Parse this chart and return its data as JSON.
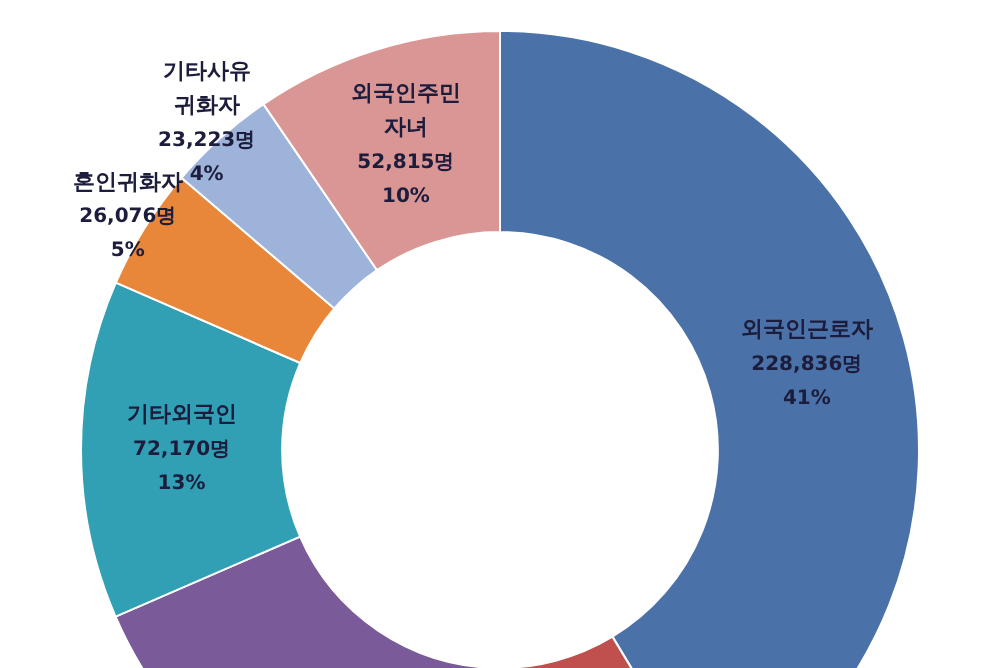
{
  "chart_data": {
    "type": "donut",
    "categories": [
      "외국인근로자",
      null,
      null,
      "기타외국인",
      "혼인귀화자",
      "기타사유 귀화자",
      "외국인주민 자녀"
    ],
    "values": [
      228836,
      50000,
      100000,
      72170,
      26076,
      23223,
      52815
    ],
    "value_labels": [
      "228,836명 41%",
      null,
      null,
      "72,170명 13%",
      "26,076명 5%",
      "23,223명 4%",
      "52,815명 10%"
    ],
    "colors": [
      "#4a72a8",
      "#c0504d",
      "#7b5a9a",
      "#31a0b5",
      "#e8873a",
      "#9db3d9",
      "#d99694"
    ],
    "legend": false
  }
}
